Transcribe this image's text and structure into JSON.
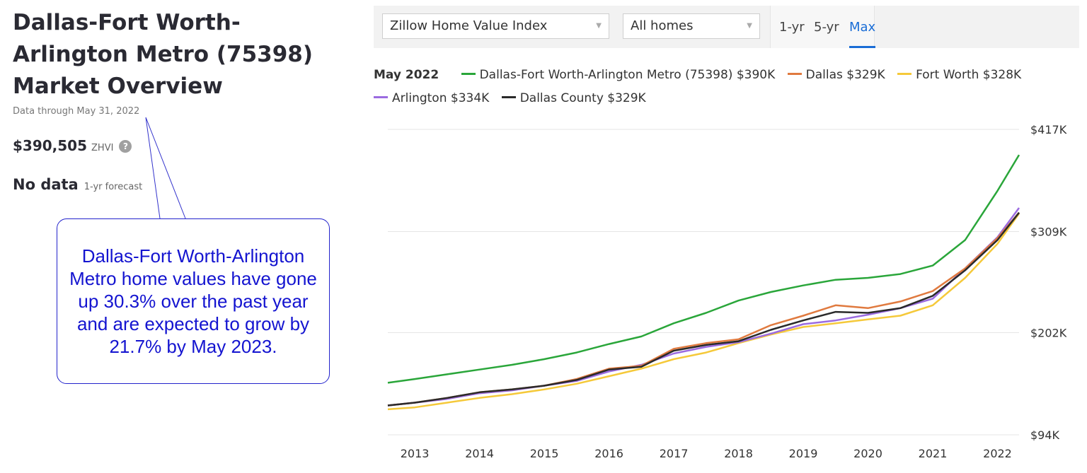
{
  "header": {
    "title": "Dallas-Fort Worth-Arlington Metro (75398) Market Overview",
    "data_through": "Data through May 31, 2022"
  },
  "stats": {
    "zhvi_value": "$390,505",
    "zhvi_label": "ZHVI",
    "help_icon": "?",
    "forecast_value": "No data",
    "forecast_label": "1-yr forecast"
  },
  "callout": {
    "text": "Dallas-Fort Worth-Arlington Metro home values have gone up 30.3% over the past year and are expected to grow by 21.7% by May 2023."
  },
  "controls": {
    "metric_select": "Zillow Home Value Index",
    "home_type_select": "All homes",
    "tabs": [
      {
        "label": "1-yr",
        "active": false
      },
      {
        "label": "5-yr",
        "active": false
      },
      {
        "label": "Max",
        "active": true
      }
    ]
  },
  "legend": {
    "date": "May 2022",
    "items": [
      {
        "label": "Dallas-Fort Worth-Arlington Metro (75398) $390K",
        "color": "#2aa63a"
      },
      {
        "label": "Dallas $329K",
        "color": "#e07a3f"
      },
      {
        "label": "Fort Worth $328K",
        "color": "#f5c93a"
      },
      {
        "label": "Arlington $334K",
        "color": "#9b6be0"
      },
      {
        "label": "Dallas County $329K",
        "color": "#2a2a2a"
      }
    ]
  },
  "chart_data": {
    "type": "line",
    "title": "",
    "xlabel": "",
    "ylabel": "",
    "x_tick_labels": [
      "2013",
      "2014",
      "2015",
      "2016",
      "2017",
      "2018",
      "2019",
      "2020",
      "2021",
      "2022"
    ],
    "y_tick_labels": [
      "$94K",
      "$202K",
      "$309K",
      "$417K"
    ],
    "y_ticks": [
      94,
      202,
      309,
      417
    ],
    "ylim": [
      94,
      417
    ],
    "xlim": [
      "2012-08",
      "2022-05"
    ],
    "grid": true,
    "y_unit": "thousands USD",
    "x": [
      "2012-08",
      "2013-01",
      "2013-07",
      "2014-01",
      "2014-07",
      "2015-01",
      "2015-07",
      "2016-01",
      "2016-07",
      "2017-01",
      "2017-07",
      "2018-01",
      "2018-07",
      "2019-01",
      "2019-07",
      "2020-01",
      "2020-07",
      "2021-01",
      "2021-07",
      "2022-01",
      "2022-05"
    ],
    "series": [
      {
        "name": "Dallas-Fort Worth-Arlington Metro (75398)",
        "color": "#2aa63a",
        "values": [
          149,
          153,
          158,
          163,
          168,
          174,
          181,
          190,
          198,
          212,
          223,
          236,
          245,
          252,
          258,
          260,
          264,
          273,
          300,
          352,
          390
        ]
      },
      {
        "name": "Dallas",
        "color": "#e07a3f",
        "values": [
          125,
          128,
          133,
          139,
          142,
          146,
          153,
          164,
          167,
          185,
          191,
          195,
          210,
          220,
          231,
          228,
          235,
          246,
          270,
          302,
          329
        ]
      },
      {
        "name": "Fort Worth",
        "color": "#f5c93a",
        "values": [
          121,
          123,
          128,
          133,
          137,
          142,
          148,
          156,
          164,
          174,
          181,
          191,
          200,
          208,
          212,
          216,
          220,
          231,
          260,
          296,
          328
        ]
      },
      {
        "name": "Arlington",
        "color": "#9b6be0",
        "values": [
          125,
          128,
          132,
          138,
          141,
          146,
          151,
          161,
          168,
          180,
          187,
          192,
          201,
          211,
          215,
          221,
          228,
          238,
          270,
          303,
          334
        ]
      },
      {
        "name": "Dallas County",
        "color": "#2a2a2a",
        "values": [
          125,
          128,
          133,
          139,
          142,
          146,
          152,
          163,
          166,
          183,
          189,
          193,
          205,
          215,
          224,
          223,
          228,
          241,
          268,
          300,
          329
        ]
      }
    ]
  }
}
